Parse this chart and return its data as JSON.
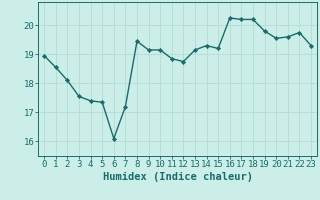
{
  "x": [
    0,
    1,
    2,
    3,
    4,
    5,
    6,
    7,
    8,
    9,
    10,
    11,
    12,
    13,
    14,
    15,
    16,
    17,
    18,
    19,
    20,
    21,
    22,
    23
  ],
  "y": [
    18.95,
    18.55,
    18.1,
    17.55,
    17.4,
    17.35,
    16.1,
    17.2,
    19.45,
    19.15,
    19.15,
    18.85,
    18.75,
    19.15,
    19.3,
    19.2,
    20.25,
    20.2,
    20.2,
    19.8,
    19.55,
    19.6,
    19.75,
    19.3
  ],
  "line_color": "#1a6b6b",
  "marker": "D",
  "marker_size": 2.2,
  "bg_color": "#cceee8",
  "grid_color": "#b8ddd8",
  "xlabel": "Humidex (Indice chaleur)",
  "ylim": [
    15.5,
    20.8
  ],
  "yticks": [
    16,
    17,
    18,
    19,
    20
  ],
  "xticks": [
    0,
    1,
    2,
    3,
    4,
    5,
    6,
    7,
    8,
    9,
    10,
    11,
    12,
    13,
    14,
    15,
    16,
    17,
    18,
    19,
    20,
    21,
    22,
    23
  ],
  "tick_fontsize": 6.5,
  "xlabel_fontsize": 7.5,
  "line_width": 1.0
}
